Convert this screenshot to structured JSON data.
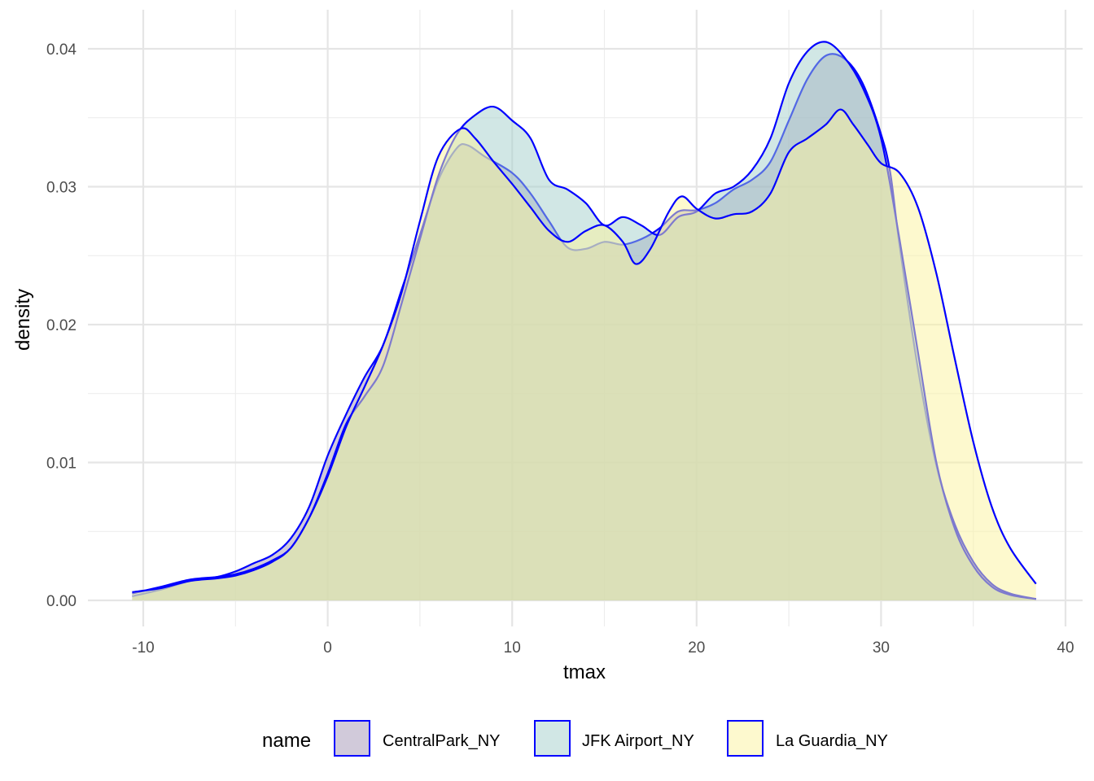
{
  "chart_data": {
    "type": "area",
    "xlabel": "tmax",
    "ylabel": "density",
    "xlim": [
      -12,
      40
    ],
    "ylim": [
      0,
      0.042
    ],
    "x_ticks": [
      -10,
      0,
      10,
      20,
      30,
      40
    ],
    "x_tick_labels": [
      "-10",
      "0",
      "10",
      "20",
      "30",
      "40"
    ],
    "y_ticks": [
      0,
      0.01,
      0.02,
      0.03,
      0.04
    ],
    "y_tick_labels": [
      "0.00",
      "0.01",
      "0.02",
      "0.03",
      "0.04"
    ],
    "grid": true,
    "legend_position": "bottom",
    "legend_title": "name",
    "outline_color": "#0000ff",
    "series": [
      {
        "name": "CentralPark_NY",
        "fill": "#a495b6",
        "points": [
          [
            -10.6,
            0.0003
          ],
          [
            -9,
            0.0008
          ],
          [
            -7.5,
            0.0014
          ],
          [
            -6,
            0.0017
          ],
          [
            -5,
            0.0021
          ],
          [
            -4,
            0.0027
          ],
          [
            -3,
            0.0033
          ],
          [
            -2,
            0.0045
          ],
          [
            -1,
            0.0068
          ],
          [
            0,
            0.0105
          ],
          [
            1,
            0.0135
          ],
          [
            2,
            0.0162
          ],
          [
            3,
            0.0185
          ],
          [
            4,
            0.0225
          ],
          [
            5,
            0.0265
          ],
          [
            6,
            0.0305
          ],
          [
            7,
            0.0328
          ],
          [
            7.6,
            0.033
          ],
          [
            8.5,
            0.0322
          ],
          [
            10,
            0.031
          ],
          [
            11,
            0.0295
          ],
          [
            12,
            0.0275
          ],
          [
            13,
            0.0256
          ],
          [
            14,
            0.0255
          ],
          [
            15,
            0.026
          ],
          [
            16,
            0.0258
          ],
          [
            17,
            0.0262
          ],
          [
            18,
            0.027
          ],
          [
            19,
            0.0282
          ],
          [
            20,
            0.0283
          ],
          [
            21,
            0.0288
          ],
          [
            22,
            0.0298
          ],
          [
            23,
            0.0305
          ],
          [
            24,
            0.0318
          ],
          [
            25,
            0.0348
          ],
          [
            26,
            0.0378
          ],
          [
            27,
            0.0395
          ],
          [
            28,
            0.0393
          ],
          [
            29,
            0.0375
          ],
          [
            30,
            0.0338
          ],
          [
            30.5,
            0.031
          ],
          [
            31,
            0.0258
          ],
          [
            32,
            0.0168
          ],
          [
            33,
            0.0098
          ],
          [
            34,
            0.0055
          ],
          [
            35,
            0.0028
          ],
          [
            36,
            0.0012
          ],
          [
            37,
            0.0005
          ],
          [
            38.4,
            0.0001
          ]
        ]
      },
      {
        "name": "JFK Airport_NY",
        "fill": "#a4cfcc",
        "points": [
          [
            -10.6,
            0.0005
          ],
          [
            -9,
            0.001
          ],
          [
            -7.5,
            0.0015
          ],
          [
            -6,
            0.0017
          ],
          [
            -5,
            0.0019
          ],
          [
            -4,
            0.0023
          ],
          [
            -3,
            0.0029
          ],
          [
            -2,
            0.0038
          ],
          [
            -1,
            0.006
          ],
          [
            0,
            0.0092
          ],
          [
            1,
            0.0128
          ],
          [
            2,
            0.0148
          ],
          [
            3,
            0.017
          ],
          [
            4,
            0.0215
          ],
          [
            5,
            0.0262
          ],
          [
            6,
            0.0308
          ],
          [
            7,
            0.0338
          ],
          [
            8,
            0.0352
          ],
          [
            9,
            0.0358
          ],
          [
            10,
            0.0348
          ],
          [
            11,
            0.0335
          ],
          [
            12,
            0.0305
          ],
          [
            13,
            0.0298
          ],
          [
            14,
            0.0288
          ],
          [
            15,
            0.0272
          ],
          [
            16,
            0.0278
          ],
          [
            17,
            0.0272
          ],
          [
            18,
            0.0265
          ],
          [
            19,
            0.0278
          ],
          [
            20,
            0.0282
          ],
          [
            21,
            0.0295
          ],
          [
            22,
            0.03
          ],
          [
            23,
            0.0312
          ],
          [
            24,
            0.0335
          ],
          [
            25,
            0.0375
          ],
          [
            26,
            0.0398
          ],
          [
            27,
            0.0405
          ],
          [
            28,
            0.0394
          ],
          [
            29,
            0.0372
          ],
          [
            30,
            0.0335
          ],
          [
            31,
            0.0262
          ],
          [
            32,
            0.018
          ],
          [
            33,
            0.01
          ],
          [
            34,
            0.0052
          ],
          [
            35,
            0.0025
          ],
          [
            36,
            0.001
          ],
          [
            37,
            0.0004
          ],
          [
            38.4,
            0.0001
          ]
        ]
      },
      {
        "name": "La Guardia_NY",
        "fill": "#fbf49d",
        "points": [
          [
            -10.6,
            0.0006
          ],
          [
            -9,
            0.0009
          ],
          [
            -7.5,
            0.0014
          ],
          [
            -6,
            0.0016
          ],
          [
            -5,
            0.0018
          ],
          [
            -4,
            0.0022
          ],
          [
            -3,
            0.0028
          ],
          [
            -2,
            0.0038
          ],
          [
            -1,
            0.006
          ],
          [
            0,
            0.009
          ],
          [
            1,
            0.0126
          ],
          [
            2,
            0.0155
          ],
          [
            3,
            0.0185
          ],
          [
            4,
            0.0223
          ],
          [
            5,
            0.0275
          ],
          [
            6,
            0.0322
          ],
          [
            7.2,
            0.0342
          ],
          [
            8,
            0.0335
          ],
          [
            9,
            0.0318
          ],
          [
            10,
            0.0302
          ],
          [
            11,
            0.0285
          ],
          [
            12,
            0.0268
          ],
          [
            13,
            0.026
          ],
          [
            14,
            0.0268
          ],
          [
            15,
            0.0272
          ],
          [
            16,
            0.026
          ],
          [
            16.7,
            0.0244
          ],
          [
            17.5,
            0.0255
          ],
          [
            18.5,
            0.0282
          ],
          [
            19.2,
            0.0293
          ],
          [
            20,
            0.0284
          ],
          [
            21,
            0.0277
          ],
          [
            22,
            0.028
          ],
          [
            23,
            0.0282
          ],
          [
            24,
            0.0295
          ],
          [
            25,
            0.0325
          ],
          [
            26,
            0.0335
          ],
          [
            27,
            0.0345
          ],
          [
            27.8,
            0.0356
          ],
          [
            28.5,
            0.0345
          ],
          [
            29.3,
            0.033
          ],
          [
            30,
            0.0317
          ],
          [
            31,
            0.031
          ],
          [
            32,
            0.0285
          ],
          [
            33,
            0.0237
          ],
          [
            34,
            0.0175
          ],
          [
            35,
            0.0115
          ],
          [
            36,
            0.0068
          ],
          [
            37,
            0.0038
          ],
          [
            38.4,
            0.0012
          ]
        ]
      }
    ]
  }
}
